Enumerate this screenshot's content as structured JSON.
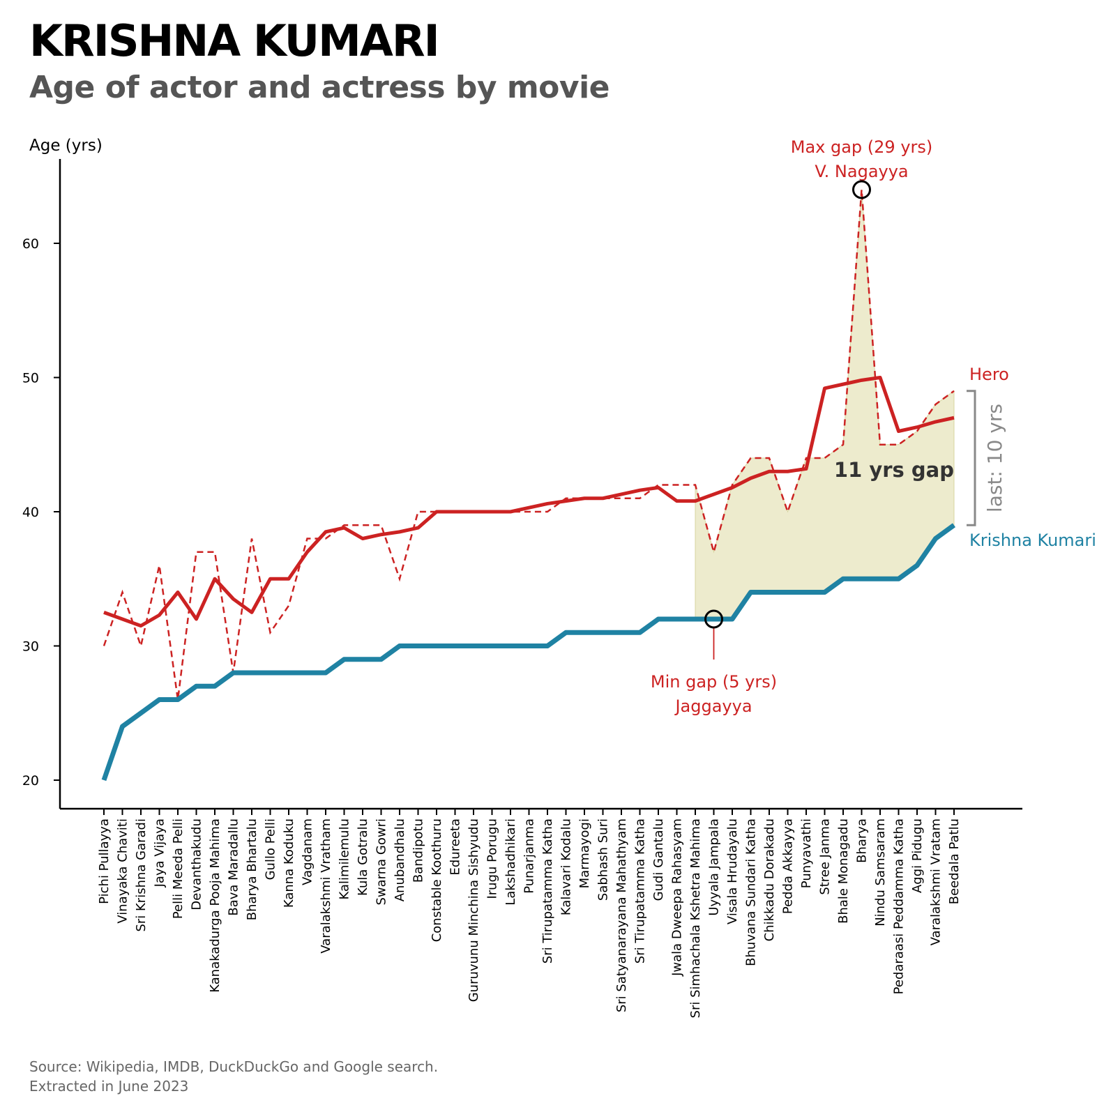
{
  "title": "KRISHNA KUMARI",
  "subtitle": "Age of actor and actress by movie",
  "source": {
    "line1": "Source: Wikipedia, IMDB, DuckDuckGo and Google search.",
    "line2": "Extracted in June 2023"
  },
  "chart_data": {
    "type": "line",
    "ylabel": "Age (yrs)",
    "ylim": [
      18,
      66
    ],
    "yticks": [
      20,
      30,
      40,
      50,
      60
    ],
    "grid": false,
    "categories": [
      "Pichi Pullayya",
      "Vinayaka Chaviti",
      "Sri Krishna Garadi",
      "Jaya Vijaya",
      "Pelli Meeda Pelli",
      "Devanthakudu",
      "Kanakadurga Pooja Mahima",
      "Bava Maradallu",
      "Bharya Bhartalu",
      "Gullo Pelli",
      "Kanna Koduku",
      "Vagdanam",
      "Varalakshmi Vratham",
      "Kalimilemulu",
      "Kula Gotralu",
      "Swarna Gowri",
      "Anubandhalu",
      "Bandipotu",
      "Constable Koothuru",
      "Edureeta",
      "Guruvunu Minchina Sishyudu",
      "Irugu Porugu",
      "Lakshadhikari",
      "Punarjanma",
      "Sri Tirupatamma Katha",
      "Kalavari Kodalu",
      "Marmayogi",
      "Sabhash Suri",
      "Sri Satyanarayana Mahathyam",
      "Sri Tirupatamma Katha",
      "Gudi Gantalu",
      "Jwala Dweepa Rahasyam",
      "Sri Simhachala Kshetra Mahima",
      "Uyyala Jampala",
      "Visala Hrudayalu",
      "Bhuvana Sundari Katha",
      "Chikkadu Dorakadu",
      "Pedda Akkayya",
      "Punyavathi",
      "Stree Janma",
      "Bhale Monagadu",
      "Bharya",
      "Nindu Samsaram",
      "Pedaraasi Peddamma Katha",
      "Aggi Pidugu",
      "Varalakshmi Vratam",
      "Beedala Patlu"
    ],
    "series": [
      {
        "name": "Hero",
        "style": "dashed",
        "values": [
          30,
          34,
          30,
          36,
          26,
          37,
          37,
          28,
          38,
          31,
          33,
          38,
          38,
          39,
          39,
          39,
          35,
          40,
          40,
          40,
          40,
          40,
          40,
          40,
          40,
          41,
          41,
          41,
          41,
          41,
          42,
          42,
          42,
          37,
          42,
          44,
          44,
          40,
          44,
          44,
          45,
          64,
          45,
          45,
          46,
          48,
          49
        ]
      },
      {
        "name": "Hero",
        "style": "smoothed",
        "values": [
          32.5,
          32,
          31.5,
          32.3,
          34,
          32,
          35,
          33.5,
          32.5,
          35,
          35,
          37,
          38.5,
          38.8,
          38,
          38.3,
          38.5,
          38.8,
          40,
          40,
          40,
          40,
          40,
          40.3,
          40.6,
          40.8,
          41,
          41,
          41.3,
          41.6,
          41.8,
          40.8,
          40.8,
          41.3,
          41.8,
          42.5,
          43,
          43,
          43.2,
          49.2,
          49.5,
          49.8,
          50,
          46,
          46.3,
          46.7,
          47
        ]
      },
      {
        "name": "Krishna Kumari",
        "values": [
          20,
          24,
          25,
          26,
          26,
          27,
          27,
          28,
          28,
          28,
          28,
          28,
          28,
          29,
          29,
          29,
          30,
          30,
          30,
          30,
          30,
          30,
          30,
          30,
          30,
          31,
          31,
          31,
          31,
          31,
          32,
          32,
          32,
          32,
          32,
          34,
          34,
          34,
          34,
          34,
          35,
          35,
          35,
          35,
          36,
          38,
          39
        ]
      }
    ],
    "gap_band_from_index": 32,
    "annotations": {
      "max_gap": {
        "line1": "Max gap (29 yrs)",
        "line2": "V. Nagayya",
        "index": 41,
        "value": 64
      },
      "min_gap": {
        "line1": "Min gap (5 yrs)",
        "line2": "Jaggayya",
        "index": 33,
        "value": 32
      },
      "gap_text": "11 yrs gap",
      "last_text": "last: 10 yrs",
      "hero_label": "Hero",
      "actress_label": "Krishna Kumari"
    },
    "colors": {
      "hero": "#cc2222",
      "actress": "#1f82a3",
      "band": "#e6e3b8",
      "bracket": "#888888"
    }
  }
}
